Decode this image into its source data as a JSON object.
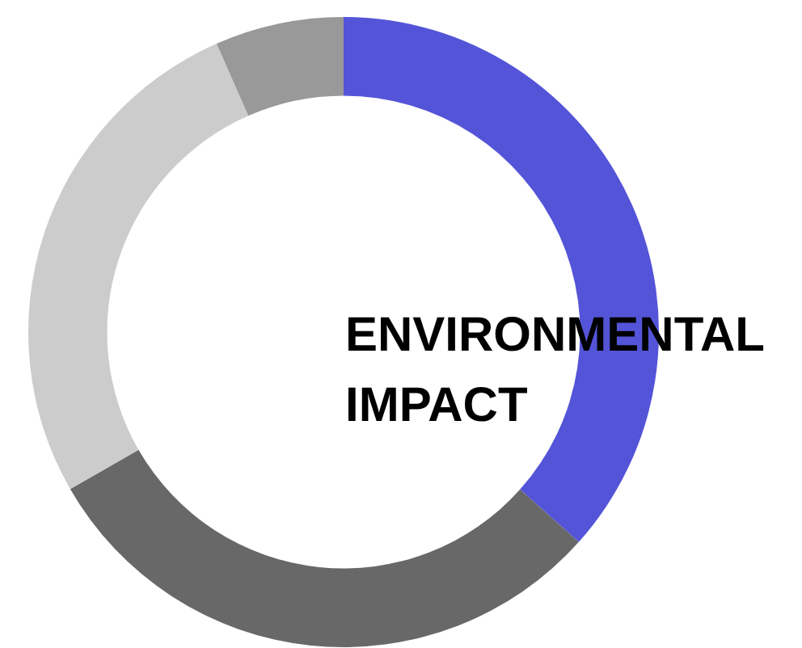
{
  "chart_data": {
    "type": "donut",
    "title": "ENVIRONMENTAL IMPACT",
    "categories": [
      null,
      null,
      null,
      null
    ],
    "values": [
      36.6,
      30.1,
      26.7,
      6.6
    ],
    "colors": [
      "#5454d8",
      "#686868",
      "#cccccc",
      "#999999"
    ]
  }
}
